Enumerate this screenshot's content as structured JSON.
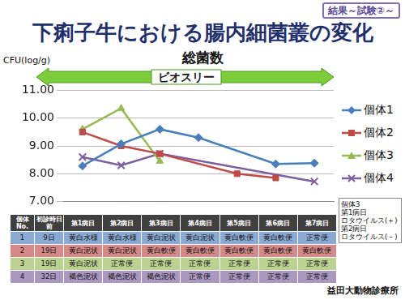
{
  "header": {
    "tag": "結果～試験②～",
    "title": "下痢子牛における腸内細菌叢の変化"
  },
  "chart_data": {
    "type": "line",
    "title": "総菌数",
    "ylabel": "CFU(log/g)",
    "annotations": [
      "ビオスリー"
    ],
    "categories": [
      "第1病日",
      "第2病日",
      "第3病日",
      "第4病日",
      "第5病日",
      "第6病日",
      "第7病日"
    ],
    "series": [
      {
        "name": "個体1",
        "color": "#4a7ebb",
        "marker": "diamond",
        "line_style": "solid",
        "values": [
          8.28,
          9.07,
          9.6,
          9.3,
          null,
          8.35,
          8.38
        ]
      },
      {
        "name": "個体2",
        "color": "#be4b48",
        "marker": "square",
        "line_style": "solid",
        "values": [
          9.5,
          9.0,
          8.72,
          null,
          8.0,
          7.85,
          null
        ]
      },
      {
        "name": "個体3",
        "color": "#98b954",
        "marker": "triangle",
        "line_style": "solid",
        "values": [
          9.6,
          10.35,
          8.45,
          null,
          null,
          null,
          null
        ]
      },
      {
        "name": "個体4",
        "color": "#7d60a0",
        "marker": "cross",
        "line_style": "solid",
        "values": [
          8.6,
          8.3,
          8.72,
          null,
          null,
          null,
          7.72
        ]
      }
    ],
    "ylim": [
      7,
      11
    ],
    "yticks": [
      {
        "value": 7,
        "label": "7.00"
      },
      {
        "value": 8,
        "label": "8.00"
      },
      {
        "value": 9,
        "label": "9.00"
      },
      {
        "value": 10,
        "label": "10.00"
      },
      {
        "value": 11,
        "label": "11.00"
      }
    ],
    "grid": true,
    "legend": "right"
  },
  "note": [
    "個体3",
    "第1病日",
    "ロタウイルス(＋)",
    "第2病日",
    "ロタウイルス(－)"
  ],
  "table": {
    "header": [
      "個体No.",
      "初診時日前"
    ],
    "rows": [
      [
        "1",
        "9日",
        "黄白水様",
        "黄白水様",
        "黄白泥状",
        "黄白泥状",
        "黄白軟便",
        "黄白軟便",
        "正常便"
      ],
      [
        "2",
        "19日",
        "黄白泥状",
        "黄白泥状",
        "黄白軟便",
        "黄白軟便",
        "黄白軟便",
        "黄白軟便",
        "黄白軟便"
      ],
      [
        "3",
        "19日",
        "黄白泥状",
        "正常便",
        "正常便",
        "正常便",
        "正常便",
        "正常便",
        "正常便"
      ],
      [
        "4",
        "32日",
        "褐色泥状",
        "褐色泥状",
        "褐色泥状",
        "正常便",
        "正常便",
        "正常便",
        "正常便"
      ]
    ]
  },
  "footer": "益田大動物診療所"
}
